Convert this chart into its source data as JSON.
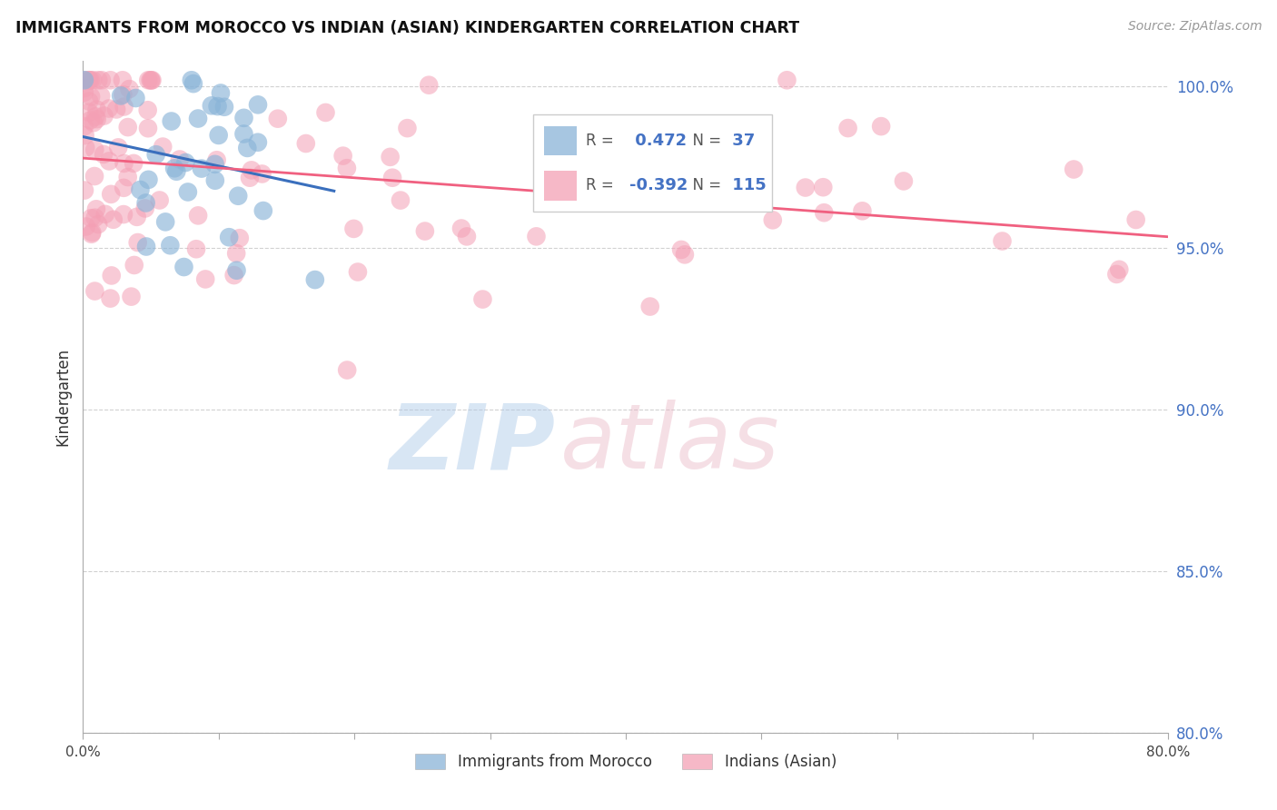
{
  "title": "IMMIGRANTS FROM MOROCCO VS INDIAN (ASIAN) KINDERGARTEN CORRELATION CHART",
  "source": "Source: ZipAtlas.com",
  "ylabel": "Kindergarten",
  "xmin": 0.0,
  "xmax": 0.8,
  "ymin": 0.8,
  "ymax": 1.008,
  "yticks": [
    0.8,
    0.85,
    0.9,
    0.95,
    1.0
  ],
  "ytick_labels": [
    "80.0%",
    "85.0%",
    "90.0%",
    "95.0%",
    "100.0%"
  ],
  "xticks": [
    0.0,
    0.1,
    0.2,
    0.3,
    0.4,
    0.5,
    0.6,
    0.7,
    0.8
  ],
  "xtick_labels": [
    "0.0%",
    "",
    "",
    "",
    "",
    "",
    "",
    "",
    "80.0%"
  ],
  "morocco_R": 0.472,
  "morocco_N": 37,
  "indian_R": -0.392,
  "indian_N": 115,
  "morocco_color": "#8ab4d8",
  "indian_color": "#f4a0b5",
  "morocco_line_color": "#3a6fbd",
  "indian_line_color": "#f06080",
  "tick_color": "#4472c4",
  "grid_color": "#cccccc",
  "spine_color": "#aaaaaa"
}
